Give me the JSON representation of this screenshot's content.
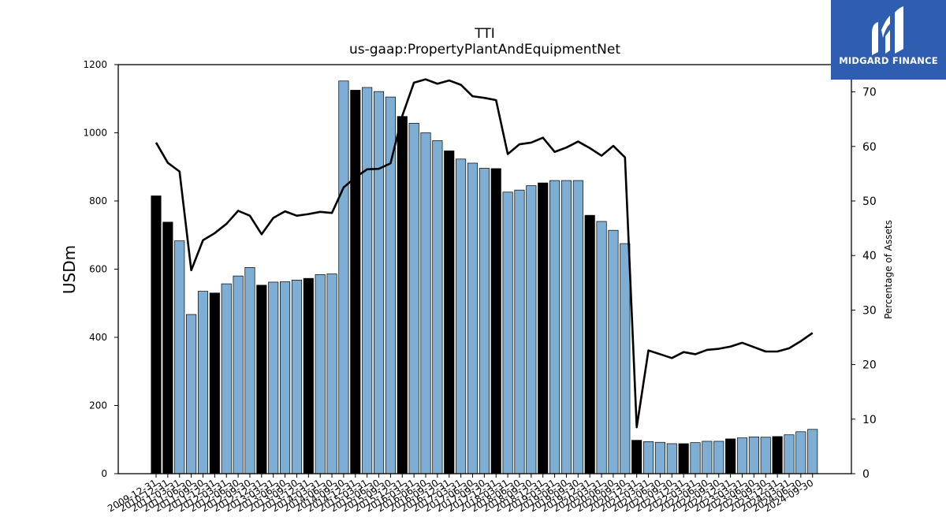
{
  "logo": {
    "text": "MIDGARD FINANCE",
    "icon": "midgard-m-icon",
    "color": "#2f5db0"
  },
  "chart_data": {
    "type": "bar",
    "title": "TTI",
    "subtitle": "us-gaap:PropertyPlantAndEquipmentNet",
    "ylabel": "USDm",
    "y2label": "Percentage of Assets",
    "ylim": [
      0,
      1200
    ],
    "y2lim": [
      0,
      75
    ],
    "yticks": [
      0,
      200,
      400,
      600,
      800,
      1000,
      1200
    ],
    "y2ticks": [
      0,
      10,
      20,
      30,
      40,
      50,
      60,
      70
    ],
    "grid": false,
    "colors": {
      "annual": "#000000",
      "quarterly": "#7eaed3",
      "line": "#000000"
    },
    "categories": [
      "2009-12-31",
      "2010-12-31",
      "2011-03-31",
      "2011-06-30",
      "2011-09-30",
      "2011-12-31",
      "2012-03-31",
      "2012-06-30",
      "2012-09-30",
      "2012-12-31",
      "2013-03-31",
      "2013-06-30",
      "2013-09-30",
      "2013-12-31",
      "2014-03-31",
      "2014-06-30",
      "2014-09-30",
      "2014-12-31",
      "2015-03-31",
      "2015-06-30",
      "2015-09-30",
      "2015-12-31",
      "2016-03-31",
      "2016-06-30",
      "2016-09-30",
      "2016-12-31",
      "2017-03-31",
      "2017-06-30",
      "2017-09-30",
      "2017-12-31",
      "2018-03-31",
      "2018-06-30",
      "2018-09-30",
      "2018-12-31",
      "2019-03-31",
      "2019-06-30",
      "2019-09-30",
      "2019-12-31",
      "2020-03-31",
      "2020-06-30",
      "2020-09-30",
      "2020-12-31",
      "2021-03-31",
      "2021-06-30",
      "2021-09-30",
      "2021-12-31",
      "2022-03-31",
      "2022-06-30",
      "2022-09-30",
      "2022-12-31",
      "2023-03-31",
      "2023-06-30",
      "2023-09-30",
      "2023-12-31",
      "2024-03-31",
      "2024-06-30",
      "2024-09-30"
    ],
    "x_tick_labels": [
      "2009-12-31",
      "2010-12-31",
      "2011-03-31",
      "2011-06-30",
      "2011-09-30",
      "2011-12-31",
      "2012-03-31",
      "2012-06-30",
      "2012-09-30",
      "2012-12-31",
      "2013-03-31",
      "2013-06-30",
      "2013-09-30",
      "2013-12-31",
      "2014-03-31",
      "2014-06-30",
      "2014-09-30",
      "2014-12-31",
      "2015-03-31",
      "2015-06-30",
      "2015-09-30",
      "2015-12-31",
      "2016-03-31",
      "2016-06-30",
      "2016-09-30",
      "2016-12-31",
      "2017-03-31",
      "2017-06-30",
      "2017-09-30",
      "2017-12-31",
      "2018-03-31",
      "2018-06-30",
      "2018-09-30",
      "2018-12-31",
      "2019-03-31",
      "2019-06-30",
      "2019-09-30",
      "2019-12-31",
      "2020-03-31",
      "2020-06-30",
      "2020-09-30",
      "2020-12-31",
      "2021-03-31",
      "2021-06-30",
      "2021-09-30",
      "2021-12-31",
      "2022-03-31",
      "2022-06-30",
      "2022-09-30",
      "2022-12-31",
      "2023-03-31",
      "2023-06-30",
      "2023-09-30",
      "2023-12-31",
      "2024-03-31",
      "2024-06-30",
      "2024-09-30"
    ],
    "bar_types": [
      "annual",
      "annual",
      "quarterly",
      "quarterly",
      "quarterly",
      "annual",
      "quarterly",
      "quarterly",
      "quarterly",
      "annual",
      "quarterly",
      "quarterly",
      "quarterly",
      "annual",
      "quarterly",
      "quarterly",
      "quarterly",
      "annual",
      "quarterly",
      "quarterly",
      "quarterly",
      "annual",
      "quarterly",
      "quarterly",
      "quarterly",
      "annual",
      "quarterly",
      "quarterly",
      "quarterly",
      "annual",
      "quarterly",
      "quarterly",
      "quarterly",
      "annual",
      "quarterly",
      "quarterly",
      "quarterly",
      "annual",
      "quarterly",
      "quarterly",
      "quarterly",
      "annual",
      "quarterly",
      "quarterly",
      "quarterly",
      "annual",
      "quarterly",
      "quarterly",
      "quarterly",
      "annual",
      "quarterly",
      "quarterly",
      "quarterly",
      "annual",
      "quarterly",
      "quarterly",
      "quarterly"
    ],
    "series": [
      {
        "name": "",
        "axis": "left",
        "kind": "bar",
        "values": [
          815,
          738,
          683,
          467,
          535,
          530,
          557,
          580,
          605,
          553,
          562,
          563,
          568,
          573,
          584,
          586,
          1152,
          1125,
          1133,
          1121,
          1105,
          1048,
          1028,
          1000,
          977,
          947,
          923,
          911,
          896,
          895,
          826,
          832,
          845,
          853,
          860,
          860,
          860,
          758,
          740,
          714,
          675,
          98,
          94,
          92,
          88,
          88,
          91,
          95,
          95,
          102,
          105,
          108,
          107,
          109,
          114,
          123,
          130
        ]
      },
      {
        "name": "",
        "axis": "right",
        "kind": "line",
        "values": [
          60.7,
          57.0,
          55.4,
          37.3,
          42.8,
          44.1,
          45.8,
          48.2,
          47.3,
          43.9,
          46.9,
          48.1,
          47.3,
          47.6,
          48.0,
          47.8,
          52.5,
          54.3,
          55.8,
          55.9,
          56.9,
          65.6,
          71.7,
          72.3,
          71.5,
          72.1,
          71.3,
          69.2,
          68.9,
          68.5,
          58.6,
          60.4,
          60.7,
          61.6,
          59.0,
          59.8,
          60.9,
          59.7,
          58.3,
          60.1,
          58.0,
          8.5,
          22.6,
          21.9,
          21.2,
          22.3,
          21.9,
          22.7,
          22.9,
          23.3,
          24.0,
          23.2,
          22.4,
          22.4,
          23.0,
          24.3,
          25.8
        ]
      }
    ]
  }
}
